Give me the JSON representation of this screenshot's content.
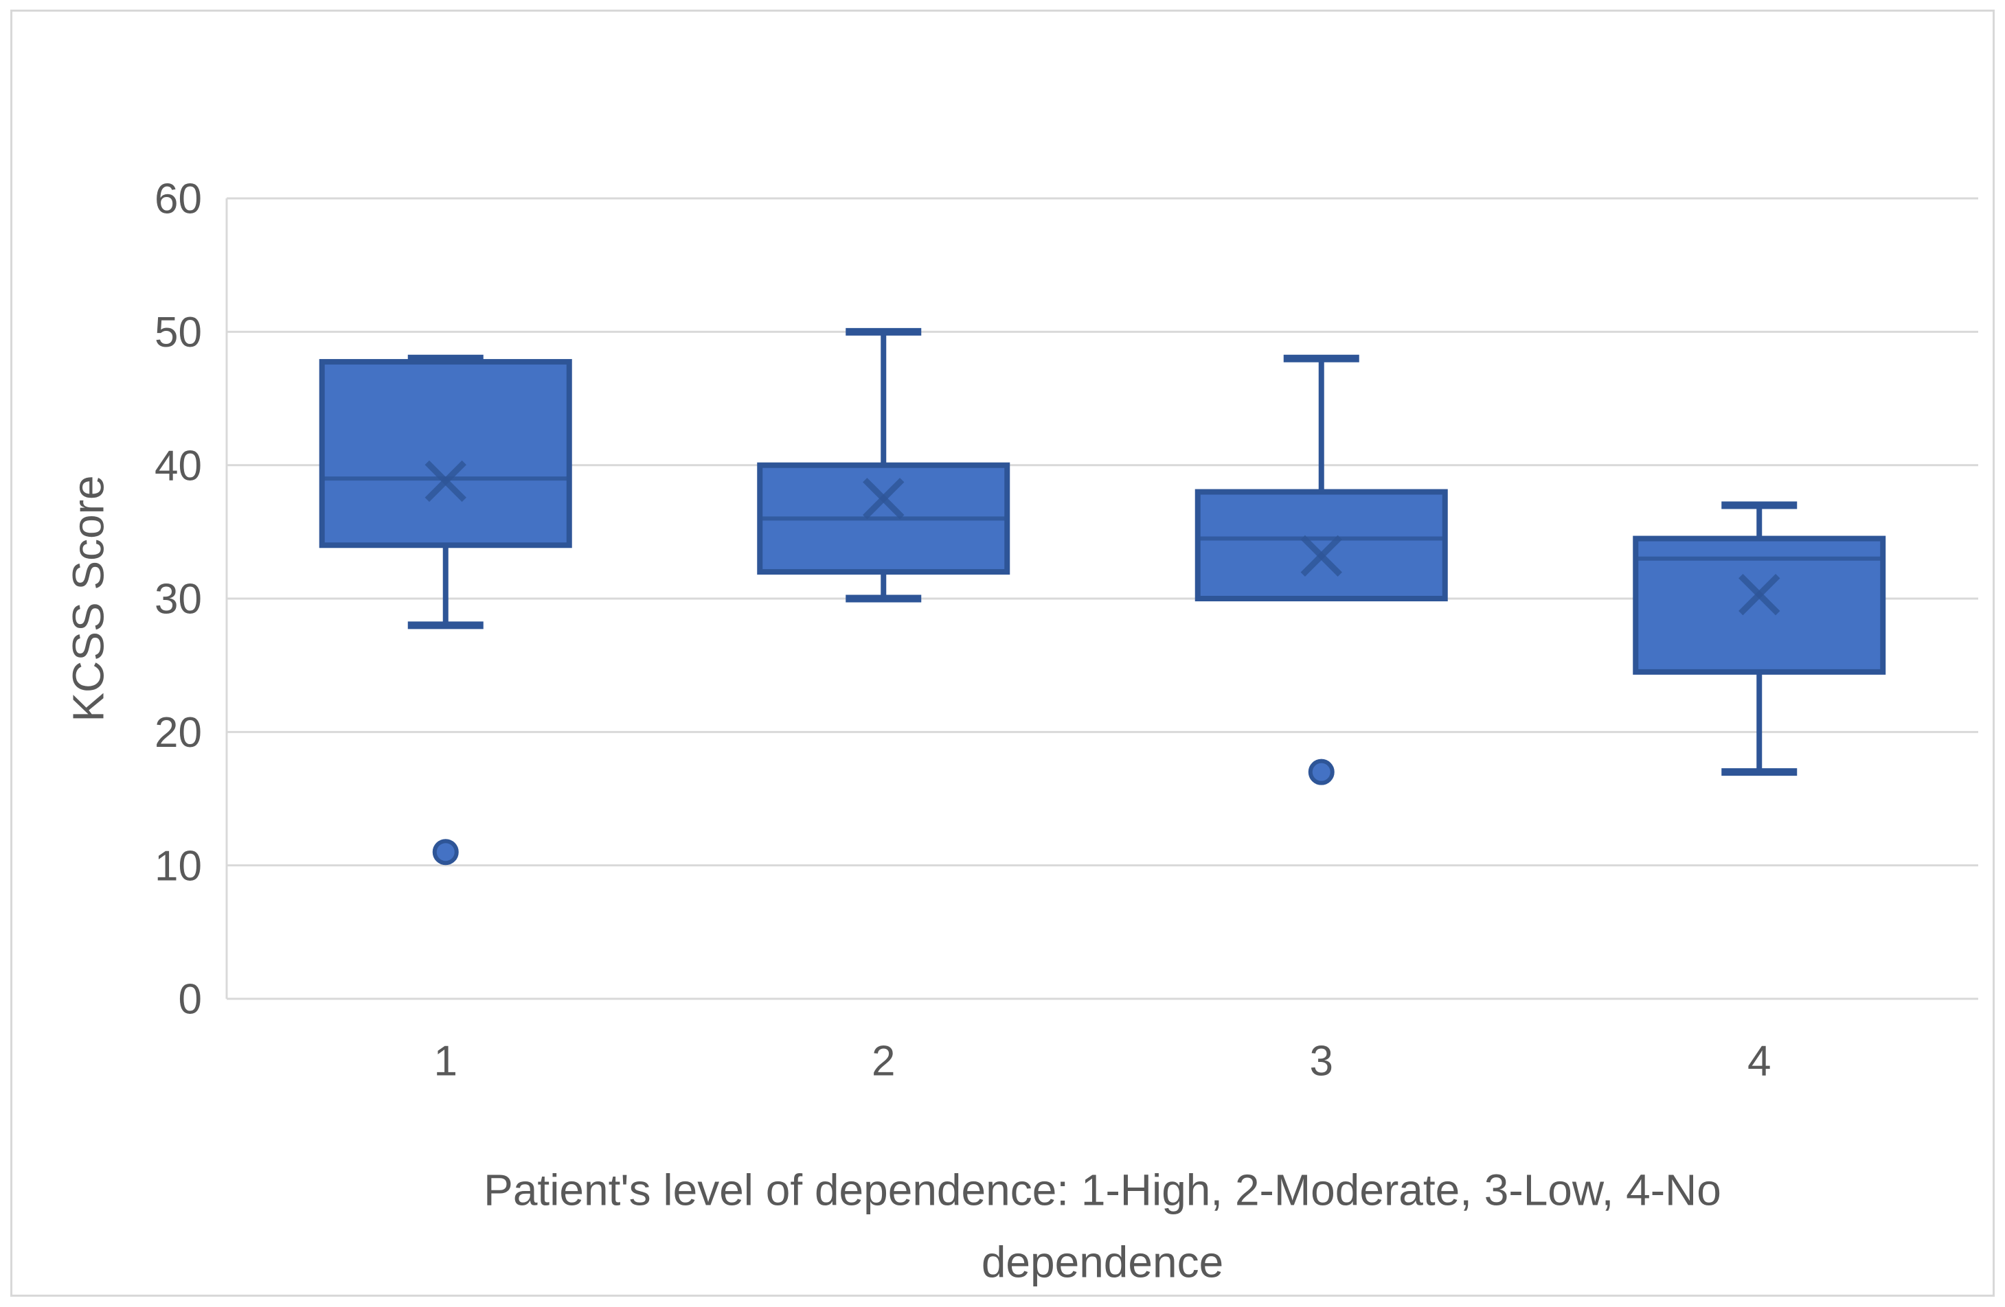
{
  "figure": {
    "background": "#ffffff",
    "frame_border_color": "#d8d8d8"
  },
  "chart_data": {
    "type": "box",
    "title": "",
    "xlabel_line1": "Patient's level of dependence: 1-High, 2-Moderate, 3-Low, 4-No",
    "xlabel_line2": "dependence",
    "ylabel": "KCSS Score",
    "categories": [
      "1",
      "2",
      "3",
      "4"
    ],
    "category_meanings": [
      "High dependence",
      "Moderate dependence",
      "Low dependence",
      "No dependence"
    ],
    "y_axis": {
      "min": 0,
      "max": 60,
      "step": 10,
      "tick_labels": [
        "0",
        "10",
        "20",
        "30",
        "40",
        "50",
        "60"
      ]
    },
    "series": [
      {
        "category": "1",
        "min": 28,
        "q1": 34,
        "median": 39,
        "q3": 47.75,
        "max": 48,
        "mean": 38.8,
        "outliers": [
          11
        ]
      },
      {
        "category": "2",
        "min": 30,
        "q1": 32,
        "median": 36,
        "q3": 40,
        "max": 50,
        "mean": 37.5,
        "outliers": []
      },
      {
        "category": "3",
        "min": 30,
        "q1": 30,
        "median": 34.5,
        "q3": 38,
        "max": 48,
        "mean": 33.2,
        "outliers": [
          17
        ]
      },
      {
        "category": "4",
        "min": 17,
        "q1": 24.5,
        "median": 33,
        "q3": 34.5,
        "max": 37,
        "mean": 30.3,
        "outliers": []
      }
    ],
    "colors": {
      "box_fill": "#4472C4",
      "box_border": "#2E5597",
      "median_mean": "#2E5597",
      "outlier_fill": "#4472C4",
      "outlier_ring": "#2E5597",
      "gridline": "#D9D9D9",
      "axis_line": "#D9D9D9",
      "text": "#595959"
    },
    "layout": {
      "gridlines": "horizontal",
      "legend": "none",
      "whiskers": "min-max with outlier points",
      "mean_marker": "x"
    }
  }
}
